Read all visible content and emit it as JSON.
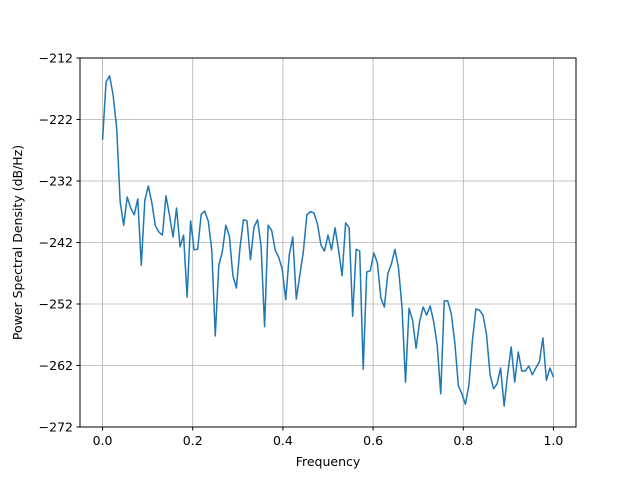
{
  "chart_data": {
    "type": "line",
    "xlabel": "Frequency",
    "ylabel": "Power Spectral Density (dB/Hz)",
    "xlim": [
      -0.05,
      1.05
    ],
    "ylim": [
      -272,
      -212
    ],
    "xticks": [
      {
        "value": 0,
        "label": "0.0"
      },
      {
        "value": 0.2,
        "label": "0.2"
      },
      {
        "value": 0.4,
        "label": "0.4"
      },
      {
        "value": 0.6,
        "label": "0.6"
      },
      {
        "value": 0.8,
        "label": "0.8"
      },
      {
        "value": 1,
        "label": "1.0"
      }
    ],
    "yticks": [
      {
        "value": -272,
        "label": "−272"
      },
      {
        "value": -262,
        "label": "−262"
      },
      {
        "value": -252,
        "label": "−252"
      },
      {
        "value": -242,
        "label": "−242"
      },
      {
        "value": -232,
        "label": "−232"
      },
      {
        "value": -222,
        "label": "−222"
      },
      {
        "value": -212,
        "label": "−212"
      }
    ],
    "grid": true,
    "x": [
      0,
      0.0078,
      0.0156,
      0.0234,
      0.0313,
      0.0391,
      0.0469,
      0.0547,
      0.0625,
      0.0703,
      0.0781,
      0.0859,
      0.0938,
      0.1016,
      0.1094,
      0.1172,
      0.125,
      0.1328,
      0.1406,
      0.1484,
      0.1563,
      0.1641,
      0.1719,
      0.1797,
      0.1875,
      0.1953,
      0.2031,
      0.2109,
      0.2188,
      0.2266,
      0.2344,
      0.2422,
      0.25,
      0.2578,
      0.2656,
      0.2734,
      0.2813,
      0.2891,
      0.2969,
      0.3047,
      0.3125,
      0.3203,
      0.3281,
      0.3359,
      0.3438,
      0.3516,
      0.3594,
      0.3672,
      0.375,
      0.3828,
      0.3906,
      0.3984,
      0.4063,
      0.4141,
      0.4219,
      0.4297,
      0.4375,
      0.4453,
      0.4531,
      0.4609,
      0.4688,
      0.4766,
      0.4844,
      0.4922,
      0.5,
      0.5078,
      0.5156,
      0.5234,
      0.5313,
      0.5391,
      0.5469,
      0.5547,
      0.5625,
      0.5703,
      0.5781,
      0.5859,
      0.5938,
      0.6016,
      0.6094,
      0.6172,
      0.625,
      0.6328,
      0.6406,
      0.6484,
      0.6563,
      0.6641,
      0.6719,
      0.6797,
      0.6875,
      0.6953,
      0.7031,
      0.7109,
      0.7188,
      0.7266,
      0.7344,
      0.7422,
      0.75,
      0.7578,
      0.7656,
      0.7734,
      0.7813,
      0.7891,
      0.7969,
      0.8047,
      0.8125,
      0.8203,
      0.8281,
      0.8359,
      0.8438,
      0.8516,
      0.8594,
      0.8672,
      0.875,
      0.8828,
      0.8906,
      0.8984,
      0.9063,
      0.9141,
      0.9219,
      0.9297,
      0.9375,
      0.9453,
      0.9531,
      0.9609,
      0.9688,
      0.9766,
      0.9844,
      0.9922,
      1.0
    ],
    "series": [
      {
        "color": "#1f77b4",
        "values": [
          -225.3,
          -215.9,
          -214.9,
          -218,
          -223.4,
          -235.4,
          -239.2,
          -234.6,
          -236.4,
          -237.5,
          -234.9,
          -245.7,
          -235.1,
          -232.8,
          -235.6,
          -239.3,
          -240.3,
          -240.8,
          -234.4,
          -237.5,
          -241.1,
          -236.4,
          -242.7,
          -240.8,
          -250.9,
          -238.5,
          -243.2,
          -243.1,
          -237.4,
          -236.9,
          -238.5,
          -243.2,
          -257.2,
          -245.7,
          -243.5,
          -239.2,
          -241,
          -247.4,
          -249.4,
          -242.9,
          -238.3,
          -238.5,
          -244.8,
          -239.5,
          -238.3,
          -242.6,
          -255.7,
          -239.2,
          -240,
          -243.2,
          -244.4,
          -246.3,
          -251.3,
          -244,
          -241.1,
          -251.2,
          -247.3,
          -243.5,
          -237.5,
          -237,
          -237.2,
          -239,
          -242.4,
          -243.4,
          -240.8,
          -243.2,
          -239.6,
          -243.2,
          -247.4,
          -238.8,
          -239.6,
          -254,
          -243.1,
          -243.4,
          -262.6,
          -246.8,
          -246.6,
          -243.7,
          -245.3,
          -251,
          -252.5,
          -247,
          -245.5,
          -243.1,
          -246.1,
          -252.5,
          -264.7,
          -252.7,
          -254.6,
          -259.2,
          -254.9,
          -252.5,
          -253.8,
          -252.3,
          -254.9,
          -258.7,
          -266.6,
          -251.5,
          -251.5,
          -253.6,
          -258.3,
          -265.3,
          -266.6,
          -268.3,
          -265.2,
          -257.9,
          -252.8,
          -253,
          -253.8,
          -257,
          -263.5,
          -265.8,
          -265,
          -262.4,
          -268.6,
          -263.4,
          -259,
          -264.7,
          -259.8,
          -262.9,
          -262.9,
          -262.1,
          -263.5,
          -262.4,
          -261.4,
          -257.5,
          -264.4,
          -262.4,
          -263.9
        ]
      }
    ]
  }
}
